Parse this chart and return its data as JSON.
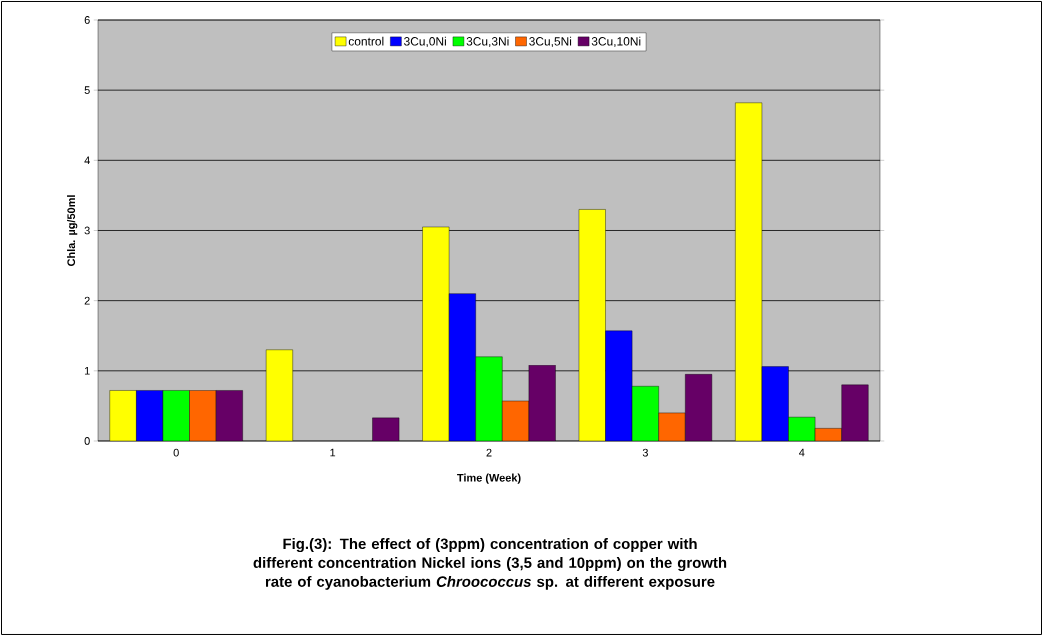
{
  "chart_data": {
    "type": "bar",
    "xlabel": "Time (Week)",
    "ylabel": "Chla. µg/50ml",
    "categories": [
      "0",
      "1",
      "2",
      "3",
      "4"
    ],
    "series": [
      {
        "name": "control",
        "color": "#ffff00",
        "values": [
          0.72,
          1.3,
          3.05,
          3.3,
          4.82
        ]
      },
      {
        "name": "3Cu,0Ni",
        "color": "#0000ff",
        "values": [
          0.72,
          null,
          2.1,
          1.57,
          1.06
        ]
      },
      {
        "name": "3Cu,3Ni",
        "color": "#00ff00",
        "values": [
          0.72,
          null,
          1.2,
          0.78,
          0.34
        ]
      },
      {
        "name": "3Cu,5Ni",
        "color": "#ff6600",
        "values": [
          0.72,
          null,
          0.57,
          0.4,
          0.18
        ]
      },
      {
        "name": "3Cu,10Ni",
        "color": "#660066",
        "values": [
          0.72,
          0.33,
          1.08,
          0.95,
          0.8
        ]
      }
    ],
    "ylim": [
      0,
      6
    ],
    "yticks": [
      0,
      1,
      2,
      3,
      4,
      5,
      6
    ],
    "grid": "y",
    "legend": "top",
    "annotations": [
      "Fig.(3): The effect of (3ppm) concentration of copper with different concentration Nickel ions (3,5 and 10ppm) on the growth rate of cyanobacterium *Chroococcus* sp. at different exposure"
    ]
  }
}
